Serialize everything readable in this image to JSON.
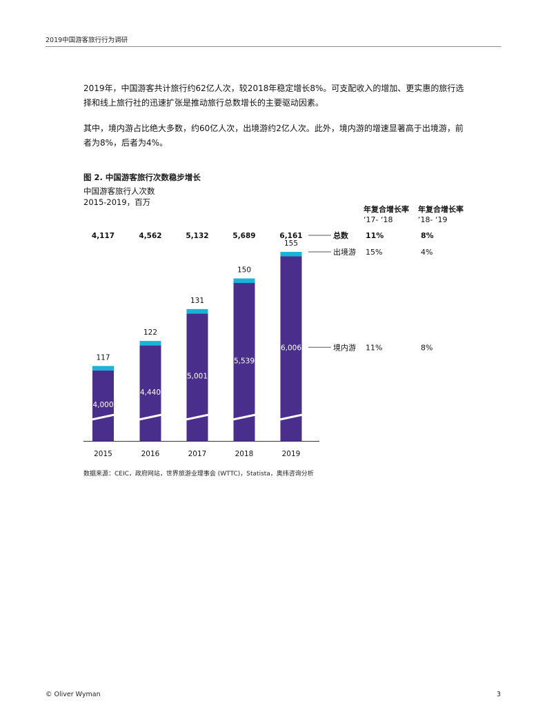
{
  "header": {
    "title": "2019中国游客旅行行为调研"
  },
  "paragraphs": [
    "2019年，中国游客共计旅行约62亿人次，较2018年稳定增长8%。可支配收入的增加、更实惠的旅行选择和线上旅行社的迅速扩张是推动旅行总数增长的主要驱动因素。",
    "其中，境内游占比绝大多数，约60亿人次，出境游约2亿人次。此外，境内游的增速显著高于出境游，前者为8%，后者为4%。"
  ],
  "figure": {
    "title": "图 2. 中国游客旅行次数稳步增长",
    "subtitle_1": "中国游客旅行人次数",
    "subtitle_2": "2015-2019，百万",
    "cagr_headers": [
      {
        "title": "年复合增长率",
        "period": "‘17- ‘18"
      },
      {
        "title": "年复合增长率",
        "period": "‘18- ‘19"
      }
    ],
    "source": "数据来源：CEIC，政府网站，世界旅游业理事会 (WTTC)，Statista，奥纬咨询分析"
  },
  "chart_data": {
    "type": "bar",
    "stacked": true,
    "axis_break": true,
    "categories": [
      "2015",
      "2016",
      "2017",
      "2018",
      "2019"
    ],
    "series": [
      {
        "name": "境内游",
        "values": [
          4000,
          4440,
          5001,
          5539,
          6006
        ],
        "color": "#4a2e8c"
      },
      {
        "name": "出境游",
        "values": [
          117,
          122,
          131,
          150,
          155
        ],
        "color": "#18b3d6"
      }
    ],
    "totals": [
      4117,
      4562,
      5132,
      5689,
      6161
    ],
    "totals_label": "总数",
    "labels": {
      "domestic": [
        "4,000",
        "4,440",
        "5,001",
        "5,539",
        "6,006"
      ],
      "outbound": [
        "117",
        "122",
        "131",
        "150",
        "155"
      ],
      "totals": [
        "4,117",
        "4,562",
        "5,132",
        "5,689",
        "6,161"
      ]
    },
    "cagr_rows": [
      {
        "name": "总数",
        "cagr_17_18": "11%",
        "cagr_18_19": "8%"
      },
      {
        "name": "出境游",
        "cagr_17_18": "15%",
        "cagr_18_19": "4%"
      },
      {
        "name": "境内游",
        "cagr_17_18": "11%",
        "cagr_18_19": "8%"
      }
    ],
    "break_line_color": "#ffffff",
    "axis_color": "#333333"
  },
  "footer": {
    "copyright": "© Oliver Wyman",
    "page_number": "3"
  }
}
